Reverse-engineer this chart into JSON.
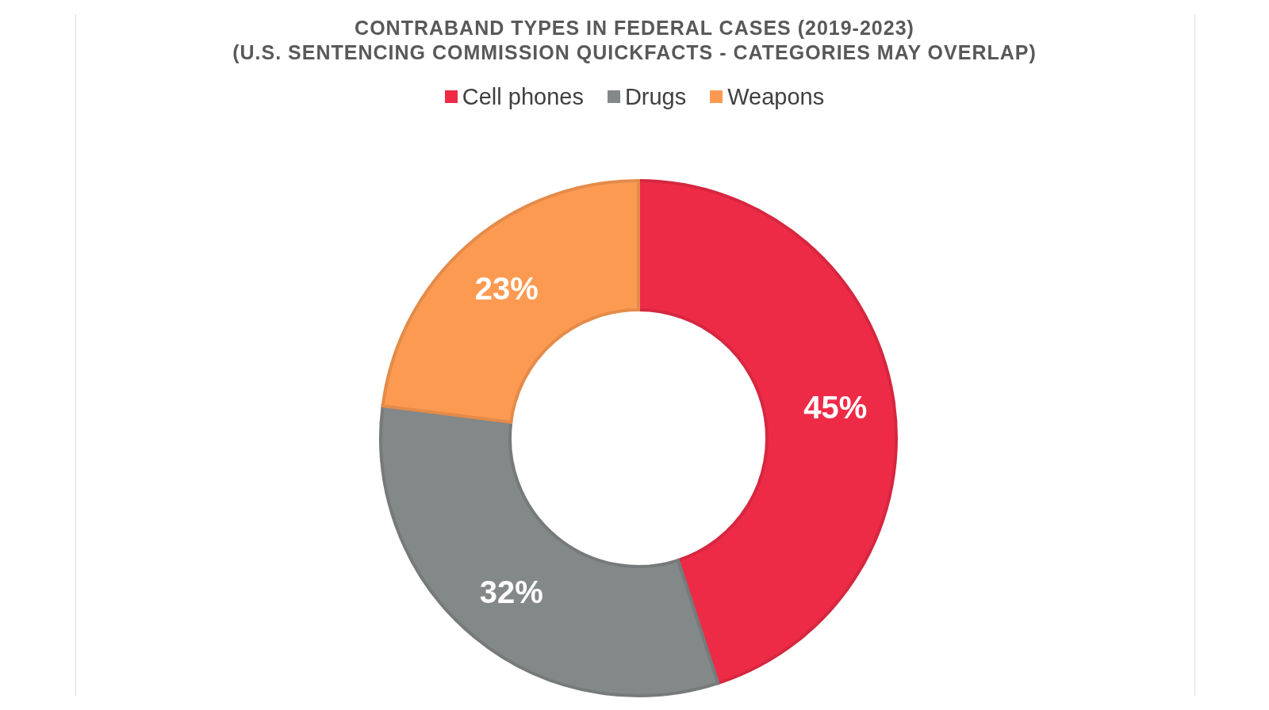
{
  "chart_data": {
    "type": "donut",
    "title": "CONTRABAND TYPES IN FEDERAL CASES (2019-2023)",
    "subtitle": "(U.S. SENTENCING COMMISSION QUICKFACTS - CATEGORIES MAY OVERLAP)",
    "categories": [
      "Cell phones",
      "Drugs",
      "Weapons"
    ],
    "values": [
      45,
      32,
      23
    ],
    "colors": [
      "#ee2b47",
      "#838889",
      "#fd9a52"
    ],
    "value_labels": [
      "45%",
      "32%",
      "23%"
    ],
    "legend": "top"
  }
}
